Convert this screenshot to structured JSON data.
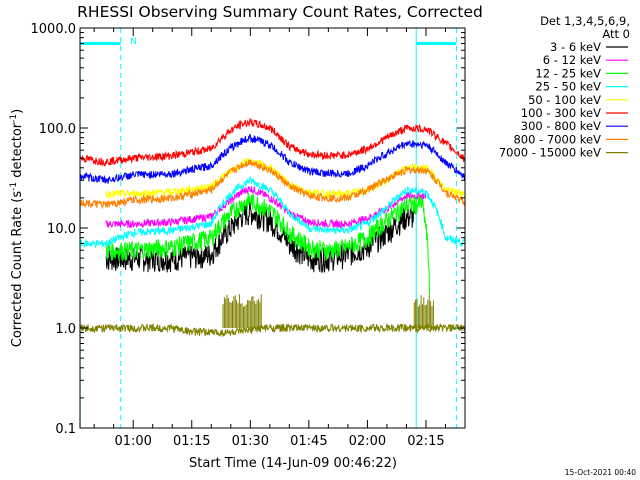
{
  "chart_data": {
    "type": "line",
    "title": "RHESSI Observing Summary Count Rates, Corrected",
    "xlabel": "Start Time (14-Jun-09 00:46:22)",
    "ylabel_main": "Corrected Count Rate (s",
    "ylabel_sup1": "-1",
    "ylabel_mid": " detector",
    "ylabel_sup2": "-1",
    "ylabel_end": ")",
    "y_scale": "log",
    "ylim": [
      0.1,
      1000.0
    ],
    "xlim_minutes": [
      46.37,
      145.0
    ],
    "y_ticks": [
      {
        "v": 1000,
        "label": "1000.0"
      },
      {
        "v": 100,
        "label": "100.0"
      },
      {
        "v": 10,
        "label": "10.0"
      },
      {
        "v": 1,
        "label": "1.0"
      },
      {
        "v": 0.1,
        "label": "0.1"
      }
    ],
    "x_ticks": [
      {
        "m": 60,
        "label": "01:00"
      },
      {
        "m": 75,
        "label": "01:15"
      },
      {
        "m": 90,
        "label": "01:30"
      },
      {
        "m": 105,
        "label": "01:45"
      },
      {
        "m": 120,
        "label": "02:00"
      },
      {
        "m": 135,
        "label": "02:15"
      }
    ],
    "legend_header": [
      "Det 1,3,4,5,6,9,",
      "Att 0"
    ],
    "legend_position": "right",
    "footer_date": "15-Oct-2021 00:40",
    "night_marker": "N",
    "saa_lines": [
      {
        "m": 46.4,
        "style": "solid"
      },
      {
        "m": 56.8,
        "style": "dashed"
      },
      {
        "m": 132.5,
        "style": "solid"
      },
      {
        "m": 142.8,
        "style": "dashed"
      }
    ],
    "marker_bars": [
      {
        "m0": 46.4,
        "m1": 56.8,
        "value": 700
      },
      {
        "m0": 132.5,
        "m1": 142.8,
        "value": 700
      }
    ],
    "highlight_color": "#00ffff",
    "series": [
      {
        "name": "3 - 6 keV",
        "color": "#000000",
        "x": [
          53,
          60,
          70,
          80,
          85,
          88,
          90,
          95,
          100,
          105,
          110,
          115,
          120,
          125,
          130,
          132
        ],
        "y": [
          5.0,
          5.0,
          5.0,
          5.5,
          10.0,
          13.5,
          14.5,
          12.0,
          7.0,
          5.0,
          5.0,
          5.5,
          6.5,
          9.0,
          13.0,
          13.0
        ]
      },
      {
        "name": "6 - 12 keV",
        "color": "#ff00ff",
        "x": [
          53,
          60,
          70,
          80,
          85,
          88,
          90,
          95,
          100,
          105,
          110,
          115,
          120,
          125,
          130,
          135
        ],
        "y": [
          11.0,
          11.0,
          11.5,
          13.0,
          19.0,
          23.0,
          25.0,
          20.0,
          14.0,
          11.5,
          11.0,
          11.0,
          12.5,
          15.5,
          21.0,
          21.0
        ]
      },
      {
        "name": "12 - 25 keV",
        "color": "#00ff00",
        "x": [
          53,
          60,
          70,
          80,
          85,
          88,
          90,
          95,
          100,
          105,
          110,
          115,
          120,
          125,
          130,
          134,
          135,
          136
        ],
        "y": [
          6.0,
          6.0,
          6.5,
          8.0,
          14.0,
          17.5,
          19.0,
          15.0,
          9.0,
          6.5,
          6.0,
          6.5,
          8.0,
          12.0,
          17.0,
          17.5,
          10.0,
          2.0
        ]
      },
      {
        "name": "25 - 50 keV",
        "color": "#00ffff",
        "x": [
          46.5,
          53,
          60,
          70,
          80,
          85,
          88,
          90,
          95,
          100,
          105,
          110,
          115,
          120,
          125,
          130,
          135,
          140,
          145
        ],
        "y": [
          7.0,
          7.0,
          9.0,
          9.5,
          11.0,
          22.0,
          27.0,
          30.0,
          24.0,
          14.0,
          10.0,
          9.5,
          9.5,
          11.0,
          16.0,
          24.0,
          23.0,
          8.0,
          7.0
        ]
      },
      {
        "name": "50 - 100 keV",
        "color": "#ffff00",
        "x": [
          53,
          60,
          70,
          80,
          85,
          88,
          90,
          95,
          100,
          105,
          110,
          115,
          120,
          125,
          130,
          135,
          140,
          145
        ],
        "y": [
          22.0,
          22.0,
          23.0,
          26.0,
          37.0,
          44.0,
          47.0,
          40.0,
          27.0,
          23.0,
          22.0,
          22.0,
          24.0,
          30.0,
          40.0,
          40.0,
          24.0,
          22.0
        ]
      },
      {
        "name": "100 - 300 keV",
        "color": "#ff0000",
        "x": [
          46.5,
          53,
          60,
          70,
          80,
          85,
          88,
          90,
          95,
          100,
          105,
          110,
          115,
          120,
          125,
          130,
          135,
          140,
          145
        ],
        "y": [
          50.0,
          46.0,
          50.0,
          53.0,
          62.0,
          95.0,
          110.0,
          115.0,
          100.0,
          65.0,
          55.0,
          53.0,
          54.0,
          62.0,
          80.0,
          100.0,
          98.0,
          70.0,
          48.0
        ]
      },
      {
        "name": "300 - 800 keV",
        "color": "#0000ff",
        "x": [
          46.5,
          53,
          60,
          70,
          80,
          85,
          88,
          90,
          95,
          100,
          105,
          110,
          115,
          120,
          125,
          130,
          135,
          140,
          145
        ],
        "y": [
          33.0,
          30.0,
          34.0,
          35.0,
          42.0,
          63.0,
          75.0,
          80.0,
          68.0,
          45.0,
          37.0,
          35.0,
          35.0,
          42.0,
          56.0,
          70.0,
          68.0,
          45.0,
          32.0
        ]
      },
      {
        "name": "800 - 7000 keV",
        "color": "#ff8000",
        "x": [
          46.5,
          53,
          60,
          70,
          80,
          85,
          88,
          90,
          95,
          100,
          105,
          110,
          115,
          120,
          125,
          130,
          135,
          140,
          145
        ],
        "y": [
          18.0,
          17.0,
          19.0,
          20.0,
          24.0,
          36.0,
          43.0,
          46.0,
          38.0,
          26.0,
          21.0,
          20.0,
          20.0,
          24.0,
          31.0,
          38.0,
          38.0,
          23.0,
          18.0
        ]
      },
      {
        "name": "7000 - 15000 keV",
        "color": "#808000",
        "x": [
          46.5,
          53,
          70,
          75,
          83,
          88,
          93,
          98,
          105,
          115,
          128,
          130,
          135,
          140,
          145
        ],
        "y": [
          1.0,
          1.0,
          1.0,
          0.92,
          0.9,
          0.92,
          1.0,
          1.0,
          1.0,
          1.0,
          1.0,
          1.0,
          1.0,
          1.0,
          1.0
        ]
      }
    ]
  }
}
